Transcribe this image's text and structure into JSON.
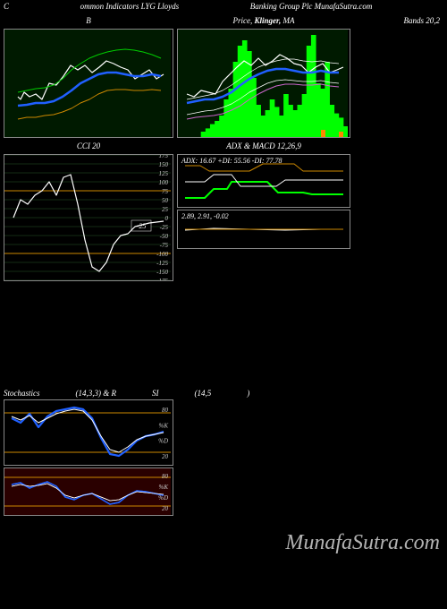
{
  "header": {
    "left": "C",
    "center_left": "ommon Indicators LYG Lloyds",
    "center_right": "Banking Group Plc MunafaSutra.com",
    "right": ""
  },
  "panel_a": {
    "title": "B",
    "width": 186,
    "height": 120,
    "bg": "#001a00",
    "series": [
      {
        "color": "#ffffff",
        "width": 1.2,
        "points": [
          15,
          75,
          18,
          78,
          22,
          70,
          28,
          75,
          35,
          72,
          42,
          78,
          50,
          60,
          58,
          62,
          66,
          52,
          74,
          40,
          82,
          45,
          90,
          40,
          98,
          48,
          106,
          42,
          114,
          35,
          122,
          38,
          130,
          42,
          138,
          45,
          146,
          55,
          154,
          50,
          162,
          45,
          170,
          55,
          178,
          50
        ]
      },
      {
        "color": "#2060ff",
        "width": 2.5,
        "points": [
          15,
          85,
          25,
          84,
          35,
          82,
          45,
          82,
          55,
          80,
          65,
          75,
          75,
          68,
          85,
          60,
          95,
          55,
          105,
          50,
          115,
          48,
          125,
          48,
          135,
          50,
          145,
          52,
          155,
          52,
          165,
          50,
          175,
          52
        ]
      },
      {
        "color": "#cc8800",
        "width": 1,
        "points": [
          15,
          100,
          25,
          98,
          35,
          98,
          45,
          96,
          55,
          95,
          65,
          92,
          75,
          88,
          85,
          82,
          95,
          78,
          105,
          72,
          115,
          68,
          125,
          67,
          135,
          67,
          145,
          68,
          155,
          68,
          165,
          67,
          175,
          68
        ]
      },
      {
        "color": "#00cc00",
        "width": 1,
        "points": [
          15,
          70,
          25,
          68,
          35,
          66,
          45,
          65,
          55,
          62,
          65,
          55,
          75,
          45,
          85,
          38,
          95,
          32,
          105,
          28,
          115,
          25,
          125,
          23,
          135,
          22,
          145,
          23,
          155,
          25,
          165,
          28,
          175,
          32
        ]
      }
    ]
  },
  "panel_b": {
    "title_left": "Price,",
    "title_mid": "Klinger,",
    "title_right": "MA",
    "far_title": "Bands 20,2",
    "width": 190,
    "height": 120,
    "bg": "#001a00",
    "bars_color": "#00ff00",
    "bars": [
      0,
      0,
      0,
      0,
      0,
      5,
      8,
      12,
      15,
      20,
      35,
      45,
      70,
      85,
      90,
      80,
      55,
      30,
      20,
      25,
      35,
      28,
      20,
      40,
      30,
      25,
      30,
      40,
      85,
      95,
      50,
      45,
      70,
      30,
      22,
      18,
      10
    ],
    "series": [
      {
        "color": "#ffffff",
        "width": 1.2,
        "points": [
          10,
          72,
          18,
          75,
          26,
          68,
          34,
          70,
          42,
          72,
          50,
          58,
          58,
          50,
          66,
          42,
          74,
          35,
          82,
          40,
          90,
          32,
          98,
          40,
          106,
          35,
          114,
          28,
          122,
          32,
          130,
          38,
          138,
          40,
          146,
          48,
          154,
          42,
          162,
          38,
          170,
          48,
          178,
          45,
          185,
          42
        ]
      },
      {
        "color": "#2060ff",
        "width": 2.5,
        "points": [
          10,
          82,
          20,
          80,
          30,
          78,
          40,
          78,
          50,
          75,
          60,
          70,
          70,
          62,
          80,
          55,
          90,
          50,
          100,
          46,
          110,
          44,
          120,
          44,
          130,
          46,
          140,
          48,
          150,
          48,
          160,
          46,
          170,
          48,
          180,
          48
        ]
      },
      {
        "color": "#ffffff",
        "width": 0.7,
        "points": [
          10,
          78,
          20,
          76,
          30,
          74,
          40,
          72,
          50,
          68,
          60,
          62,
          70,
          55,
          80,
          48,
          90,
          42,
          100,
          38,
          110,
          35,
          120,
          33,
          130,
          33,
          140,
          35,
          150,
          36,
          160,
          35,
          170,
          37,
          180,
          38
        ]
      },
      {
        "color": "#ffffff",
        "width": 0.7,
        "points": [
          10,
          95,
          20,
          93,
          30,
          91,
          40,
          90,
          50,
          87,
          60,
          83,
          70,
          77,
          80,
          70,
          90,
          65,
          100,
          60,
          110,
          57,
          120,
          56,
          130,
          57,
          140,
          58,
          150,
          58,
          160,
          57,
          170,
          59,
          180,
          60
        ]
      },
      {
        "color": "#cc66cc",
        "width": 1,
        "points": [
          10,
          100,
          20,
          98,
          30,
          97,
          40,
          96,
          50,
          94,
          60,
          90,
          70,
          85,
          80,
          78,
          90,
          72,
          100,
          67,
          110,
          63,
          120,
          61,
          130,
          61,
          140,
          62,
          150,
          62,
          160,
          61,
          170,
          63,
          180,
          64
        ]
      }
    ]
  },
  "cci": {
    "title": "CCI 20",
    "width": 186,
    "height": 140,
    "grid_color": "#2a5a2a",
    "ylabels": [
      "175",
      "150",
      "125",
      "100",
      "75",
      "50",
      "25",
      "0",
      "-25",
      "-50",
      "-75",
      "-100",
      "-125",
      "-150",
      "-175"
    ],
    "orange_levels": [
      4,
      11
    ],
    "highlight_label": "-25",
    "series": [
      {
        "color": "#ffffff",
        "width": 1.2,
        "points": [
          10,
          70,
          18,
          50,
          26,
          55,
          34,
          45,
          42,
          40,
          50,
          30,
          58,
          45,
          66,
          25,
          74,
          22,
          82,
          55,
          90,
          95,
          98,
          125,
          106,
          130,
          114,
          120,
          122,
          100,
          130,
          90,
          138,
          88,
          146,
          80,
          154,
          78,
          162,
          76,
          170,
          75,
          178,
          74
        ]
      }
    ]
  },
  "adx": {
    "title": "ADX  & MACD 12,26,9",
    "info": "ADX: 16.67 +DI: 55.56  -DI: 77.78",
    "width": 190,
    "height": 58,
    "series": [
      {
        "color": "#00ff00",
        "width": 2,
        "points": [
          8,
          48,
          30,
          48,
          40,
          38,
          55,
          38,
          60,
          30,
          100,
          30,
          112,
          42,
          140,
          42,
          150,
          44,
          185,
          44
        ]
      },
      {
        "color": "#cc8800",
        "width": 1,
        "points": [
          8,
          12,
          25,
          12,
          35,
          18,
          80,
          18,
          95,
          10,
          130,
          10,
          140,
          18,
          185,
          18
        ]
      },
      {
        "color": "#ffffff",
        "width": 1,
        "points": [
          8,
          30,
          30,
          30,
          40,
          22,
          60,
          22,
          70,
          35,
          110,
          35,
          120,
          28,
          185,
          28
        ]
      }
    ]
  },
  "macd": {
    "info": "2.89, 2.91, -0.02",
    "width": 190,
    "height": 42,
    "series": [
      {
        "color": "#ffffff",
        "width": 1,
        "points": [
          8,
          22,
          40,
          20,
          80,
          21,
          120,
          22,
          160,
          21,
          185,
          21
        ]
      },
      {
        "color": "#cc8800",
        "width": 1,
        "points": [
          8,
          21,
          185,
          21
        ]
      }
    ]
  },
  "stoch": {
    "title_parts": [
      "Stochastics",
      "(14,3,3) & R",
      "SI",
      "(14,5",
      ")"
    ],
    "width": 186,
    "height": 72,
    "ylabels": [
      "80",
      "%K",
      "%D",
      "20"
    ],
    "orange_y": [
      14,
      58
    ],
    "series": [
      {
        "color": "#2060ff",
        "width": 2.2,
        "points": [
          8,
          20,
          18,
          25,
          28,
          15,
          38,
          30,
          48,
          18,
          58,
          12,
          68,
          10,
          78,
          8,
          88,
          10,
          98,
          20,
          108,
          42,
          118,
          60,
          128,
          62,
          138,
          55,
          148,
          45,
          158,
          40,
          168,
          38,
          178,
          35
        ]
      },
      {
        "color": "#ffffff",
        "width": 1,
        "points": [
          8,
          18,
          18,
          22,
          28,
          17,
          38,
          25,
          48,
          20,
          58,
          15,
          68,
          12,
          78,
          10,
          88,
          12,
          98,
          22,
          108,
          40,
          118,
          55,
          128,
          58,
          138,
          52,
          148,
          44,
          158,
          40,
          168,
          38,
          178,
          36
        ]
      }
    ]
  },
  "rsi": {
    "width": 186,
    "height": 52,
    "bg": "#2a0000",
    "ylabels": [
      "80",
      "%K",
      "%D",
      "20"
    ],
    "orange_y": [
      10,
      42
    ],
    "series": [
      {
        "color": "#2060ff",
        "width": 1.5,
        "points": [
          8,
          18,
          18,
          16,
          28,
          22,
          38,
          18,
          48,
          15,
          58,
          20,
          68,
          32,
          78,
          35,
          88,
          30,
          98,
          28,
          108,
          34,
          118,
          40,
          128,
          38,
          138,
          30,
          148,
          25,
          158,
          26,
          168,
          28,
          178,
          30
        ]
      },
      {
        "color": "#ffffff",
        "width": 0.8,
        "points": [
          8,
          20,
          18,
          18,
          28,
          20,
          38,
          19,
          48,
          17,
          58,
          22,
          68,
          30,
          78,
          33,
          88,
          30,
          98,
          28,
          108,
          32,
          118,
          36,
          128,
          35,
          138,
          30,
          148,
          26,
          158,
          27,
          168,
          28,
          178,
          29
        ]
      }
    ]
  },
  "watermark": "MunafaSutra.com"
}
